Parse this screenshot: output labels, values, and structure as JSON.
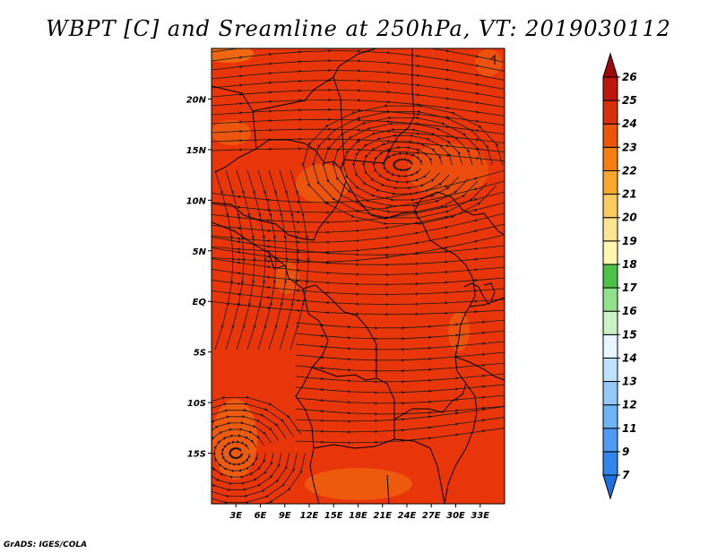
{
  "title": "WBPT [C] and Sreamline at 250hPa, VT: 2019030112",
  "credit": "GrADS: IGES/COLA",
  "map": {
    "variable": "WBPT",
    "units": "C",
    "level": "250hPa",
    "valid_time": "2019030112",
    "lon_range": [
      0,
      36
    ],
    "lat_range": [
      -20,
      25
    ],
    "background_color": "#e8360a",
    "x_ticks": [
      {
        "label": "3E",
        "lon": 3
      },
      {
        "label": "6E",
        "lon": 6
      },
      {
        "label": "9E",
        "lon": 9
      },
      {
        "label": "12E",
        "lon": 12
      },
      {
        "label": "15E",
        "lon": 15
      },
      {
        "label": "18E",
        "lon": 18
      },
      {
        "label": "21E",
        "lon": 21
      },
      {
        "label": "24E",
        "lon": 24
      },
      {
        "label": "27E",
        "lon": 27
      },
      {
        "label": "30E",
        "lon": 30
      },
      {
        "label": "33E",
        "lon": 33
      }
    ],
    "y_ticks": [
      {
        "label": "20N",
        "lat": 20
      },
      {
        "label": "15N",
        "lat": 15
      },
      {
        "label": "10N",
        "lat": 10
      },
      {
        "label": "5N",
        "lat": 5
      },
      {
        "label": "EQ",
        "lat": 0
      },
      {
        "label": "5S",
        "lat": -5
      },
      {
        "label": "10S",
        "lat": -10
      },
      {
        "label": "15S",
        "lat": -15
      }
    ],
    "features": [
      {
        "name": "anticyclone",
        "lon": 23.5,
        "lat": 13.5
      },
      {
        "name": "anticyclone",
        "lon": 3,
        "lat": -15
      }
    ]
  },
  "colorbar": {
    "levels": [
      "7",
      "9",
      "11",
      "12",
      "13",
      "14",
      "15",
      "16",
      "17",
      "18",
      "19",
      "20",
      "21",
      "22",
      "23",
      "24",
      "25",
      "26"
    ],
    "colors": [
      "#1e6fe0",
      "#2f86ec",
      "#4b9cf2",
      "#6eb3f6",
      "#93c9f9",
      "#bfe1fc",
      "#e8f6ff",
      "#c9f3c4",
      "#90e28a",
      "#4cc248",
      "#fdf7b0",
      "#fce691",
      "#fbcb5f",
      "#f9a72f",
      "#f67e10",
      "#ec5509",
      "#d9300a",
      "#c0170d",
      "#9e0a0a"
    ]
  }
}
